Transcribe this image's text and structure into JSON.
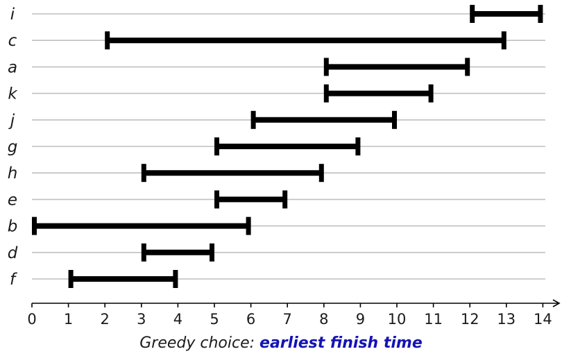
{
  "chart_data": {
    "type": "interval",
    "rows": [
      {
        "label": "i",
        "start": 12,
        "end": 14
      },
      {
        "label": "c",
        "start": 2,
        "end": 13
      },
      {
        "label": "a",
        "start": 8,
        "end": 12
      },
      {
        "label": "k",
        "start": 8,
        "end": 11
      },
      {
        "label": "j",
        "start": 6,
        "end": 10
      },
      {
        "label": "g",
        "start": 5,
        "end": 9
      },
      {
        "label": "h",
        "start": 3,
        "end": 8
      },
      {
        "label": "e",
        "start": 5,
        "end": 7
      },
      {
        "label": "b",
        "start": 0,
        "end": 6
      },
      {
        "label": "d",
        "start": 3,
        "end": 5
      },
      {
        "label": "f",
        "start": 1,
        "end": 4
      }
    ],
    "x_ticks": [
      "0",
      "1",
      "2",
      "3",
      "4",
      "5",
      "6",
      "7",
      "8",
      "9",
      "10",
      "11",
      "12",
      "13",
      "14"
    ],
    "xlim": [
      0,
      14
    ],
    "grid": true
  },
  "caption": {
    "prefix": "Greedy choice: ",
    "emphasis": "earliest finish time"
  }
}
